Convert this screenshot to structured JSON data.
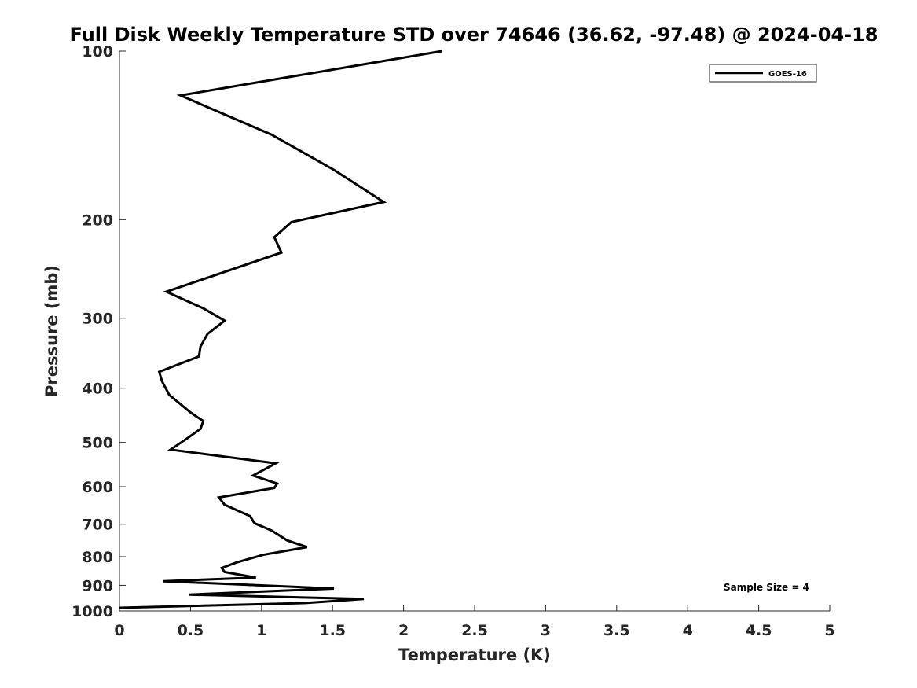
{
  "chart_data": {
    "type": "line",
    "title": "Full Disk Weekly Temperature STD over 74646 (36.62, -97.48) @ 2024-04-18",
    "xlabel": "Temperature (K)",
    "ylabel": "Pressure (mb)",
    "xlim": [
      0,
      5
    ],
    "ylim": [
      100,
      1000
    ],
    "yscale": "log",
    "yreversed": true,
    "grid": false,
    "legend_position": "top-right",
    "x_ticks": [
      0,
      0.5,
      1,
      1.5,
      2,
      2.5,
      3,
      3.5,
      4,
      4.5,
      5
    ],
    "x_tick_labels": [
      "0",
      "0.5",
      "1",
      "1.5",
      "2",
      "2.5",
      "3",
      "3.5",
      "4",
      "4.5",
      "5"
    ],
    "y_ticks": [
      100,
      200,
      300,
      400,
      500,
      600,
      700,
      800,
      900,
      1000
    ],
    "y_tick_labels": [
      "100",
      "200",
      "300",
      "400",
      "500",
      "600",
      "700",
      "800",
      "900",
      "1000"
    ],
    "series": [
      {
        "name": "GOES-16",
        "color": "#000000",
        "x": [
          2.27,
          0.43,
          1.07,
          1.51,
          1.86,
          1.21,
          1.09,
          1.14,
          0.33,
          0.59,
          0.74,
          0.62,
          0.57,
          0.56,
          0.28,
          0.3,
          0.35,
          0.5,
          0.59,
          0.57,
          0.47,
          0.36,
          1.1,
          0.94,
          1.11,
          1.09,
          0.7,
          0.74,
          0.92,
          0.95,
          1.07,
          1.18,
          1.32,
          1.01,
          0.82,
          0.72,
          0.74,
          0.96,
          0.31,
          1.51,
          0.49,
          1.72,
          1.31,
          0.0
        ],
        "y": [
          100,
          120,
          141,
          163,
          186,
          202,
          215,
          229,
          269,
          288,
          303,
          320,
          337,
          351,
          374,
          389,
          411,
          442,
          458,
          473,
          493,
          515,
          545,
          573,
          592,
          603,
          627,
          646,
          677,
          697,
          718,
          748,
          769,
          794,
          820,
          838,
          852,
          872,
          885,
          912,
          935,
          952,
          968,
          987
        ]
      }
    ],
    "annotations": [
      {
        "text": "Sample Size = 4",
        "x": 4.36,
        "y": 910
      }
    ]
  }
}
